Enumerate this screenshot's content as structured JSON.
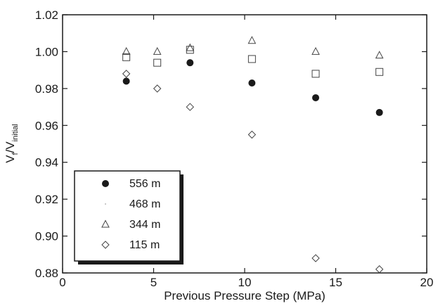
{
  "chart_data": {
    "type": "scatter",
    "title": "",
    "xlabel": "Previous Pressure Step (MPa)",
    "ylabel": {
      "main": "V",
      "sub1": "f",
      "slash": "/V",
      "sub2": "initial"
    },
    "xlim": [
      0,
      20
    ],
    "ylim": [
      0.88,
      1.02
    ],
    "xticks": [
      0,
      5,
      10,
      15,
      20
    ],
    "xtick_labels": [
      "0",
      "5",
      "10",
      "15",
      "20"
    ],
    "yticks": [
      0.88,
      0.9,
      0.92,
      0.94,
      0.96,
      0.98,
      1.0,
      1.02
    ],
    "ytick_labels": [
      "0.88",
      "0.90",
      "0.92",
      "0.94",
      "0.96",
      "0.98",
      "1.00",
      "1.02"
    ],
    "grid": false,
    "legend_position": "bottom-left",
    "series": [
      {
        "name": "556 m",
        "marker": "filled-circle",
        "x": [
          3.5,
          7.0,
          10.4,
          13.9,
          17.4
        ],
        "y": [
          0.984,
          0.994,
          0.983,
          0.975,
          0.967
        ]
      },
      {
        "name": "468 m",
        "marker": "open-square",
        "x": [
          3.5,
          5.2,
          7.0,
          10.4,
          13.9,
          17.4
        ],
        "y": [
          0.997,
          0.994,
          1.001,
          0.996,
          0.988,
          0.989
        ]
      },
      {
        "name": "344 m",
        "marker": "open-triangle",
        "x": [
          3.5,
          5.2,
          7.0,
          10.4,
          13.9,
          17.4
        ],
        "y": [
          1.0,
          1.0,
          1.002,
          1.006,
          1.0,
          0.998
        ]
      },
      {
        "name": "115 m",
        "marker": "open-diamond",
        "x": [
          3.5,
          5.2,
          7.0,
          10.4,
          13.9,
          17.4
        ],
        "y": [
          0.988,
          0.98,
          0.97,
          0.955,
          0.888,
          0.882
        ]
      }
    ]
  }
}
